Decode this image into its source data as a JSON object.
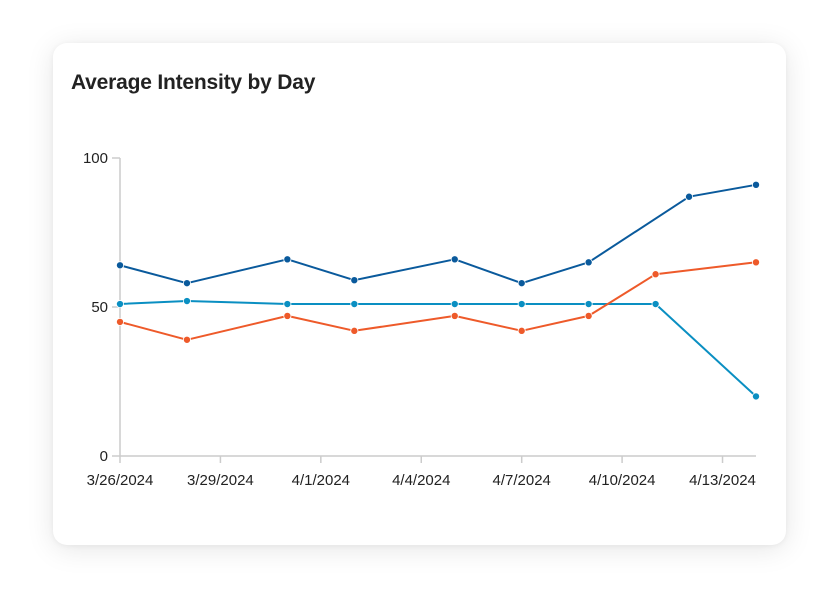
{
  "card": {
    "title": "Average Intensity by Day"
  },
  "colors": {
    "series_1": "#0a5a9c",
    "series_2": "#0a8fc2",
    "series_3": "#ee5a2a",
    "axis": "#cccccc"
  },
  "chart_data": {
    "type": "line",
    "title": "Average Intensity by Day",
    "xlabel": "",
    "ylabel": "",
    "x_axis": {
      "type": "date",
      "range": [
        "2024-03-26",
        "2024-04-14"
      ],
      "tick_values": [
        "2024-03-26",
        "2024-03-29",
        "2024-04-01",
        "2024-04-04",
        "2024-04-07",
        "2024-04-10",
        "2024-04-13"
      ],
      "tick_labels": [
        "3/26/2024",
        "3/29/2024",
        "4/1/2024",
        "4/4/2024",
        "4/7/2024",
        "4/10/2024",
        "4/13/2024"
      ]
    },
    "y_axis": {
      "range": [
        0,
        100
      ],
      "tick_values": [
        0,
        50,
        100
      ],
      "tick_labels": [
        "0",
        "50",
        "100"
      ]
    },
    "grid": false,
    "legend": "none",
    "series": [
      {
        "color": "#0a5a9c",
        "points": [
          {
            "x": "2024-03-26",
            "y": 64
          },
          {
            "x": "2024-03-28",
            "y": 58
          },
          {
            "x": "2024-03-31",
            "y": 66
          },
          {
            "x": "2024-04-02",
            "y": 59
          },
          {
            "x": "2024-04-05",
            "y": 66
          },
          {
            "x": "2024-04-07",
            "y": 58
          },
          {
            "x": "2024-04-09",
            "y": 65
          },
          {
            "x": "2024-04-12",
            "y": 87
          },
          {
            "x": "2024-04-14",
            "y": 91
          }
        ]
      },
      {
        "color": "#0a8fc2",
        "points": [
          {
            "x": "2024-03-26",
            "y": 51
          },
          {
            "x": "2024-03-28",
            "y": 52
          },
          {
            "x": "2024-03-31",
            "y": 51
          },
          {
            "x": "2024-04-02",
            "y": 51
          },
          {
            "x": "2024-04-05",
            "y": 51
          },
          {
            "x": "2024-04-07",
            "y": 51
          },
          {
            "x": "2024-04-09",
            "y": 51
          },
          {
            "x": "2024-04-11",
            "y": 51
          },
          {
            "x": "2024-04-14",
            "y": 20
          }
        ]
      },
      {
        "color": "#ee5a2a",
        "points": [
          {
            "x": "2024-03-26",
            "y": 45
          },
          {
            "x": "2024-03-28",
            "y": 39
          },
          {
            "x": "2024-03-31",
            "y": 47
          },
          {
            "x": "2024-04-02",
            "y": 42
          },
          {
            "x": "2024-04-05",
            "y": 47
          },
          {
            "x": "2024-04-07",
            "y": 42
          },
          {
            "x": "2024-04-09",
            "y": 47
          },
          {
            "x": "2024-04-11",
            "y": 61
          },
          {
            "x": "2024-04-14",
            "y": 65
          }
        ]
      }
    ]
  }
}
